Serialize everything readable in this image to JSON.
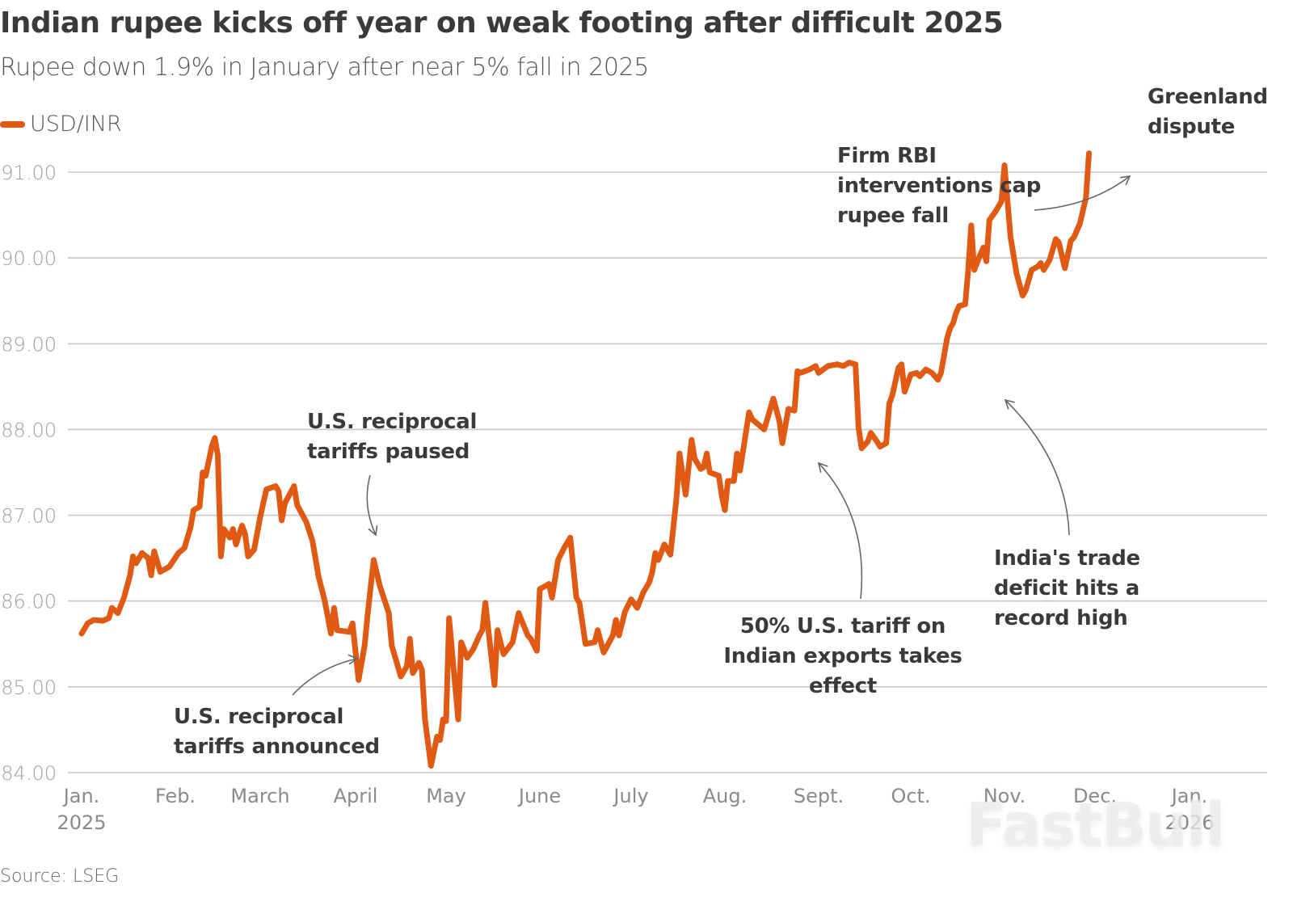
{
  "header": {
    "title": "Indian rupee kicks off year on weak footing after difficult 2025",
    "subtitle": "Rupee down 1.9% in January after near 5% fall in 2025"
  },
  "legend": {
    "label": "USD/INR",
    "color": "#e05a14"
  },
  "footer": {
    "source": "Source: LSEG",
    "watermark": "FastBull"
  },
  "chart_data": {
    "type": "line",
    "title": "Indian rupee kicks off year on weak footing after difficult 2025",
    "subtitle": "Rupee down 1.9% in January after near 5% fall in 2025",
    "xlabel": "",
    "ylabel": "",
    "ylim": [
      84.0,
      91.0
    ],
    "yticks": [
      "91.00",
      "90.00",
      "89.00",
      "88.00",
      "87.00",
      "86.00",
      "85.00",
      "84.00"
    ],
    "ytick_values": [
      91,
      90,
      89,
      88,
      87,
      86,
      85,
      84
    ],
    "xticks": [
      {
        "label": "Jan.",
        "sub": "2025",
        "date": "2025-01-01"
      },
      {
        "label": "Feb.",
        "sub": "",
        "date": "2025-02-01"
      },
      {
        "label": "March",
        "sub": "",
        "date": "2025-03-01"
      },
      {
        "label": "April",
        "sub": "",
        "date": "2025-04-01"
      },
      {
        "label": "May",
        "sub": "",
        "date": "2025-05-01"
      },
      {
        "label": "June",
        "sub": "",
        "date": "2025-06-01"
      },
      {
        "label": "July",
        "sub": "",
        "date": "2025-07-01"
      },
      {
        "label": "Aug.",
        "sub": "",
        "date": "2025-08-01"
      },
      {
        "label": "Sept.",
        "sub": "",
        "date": "2025-09-01"
      },
      {
        "label": "Oct.",
        "sub": "",
        "date": "2025-10-01"
      },
      {
        "label": "Nov.",
        "sub": "",
        "date": "2025-11-01"
      },
      {
        "label": "Dec.",
        "sub": "",
        "date": "2025-12-01"
      },
      {
        "label": "Jan.",
        "sub": "2026",
        "date": "2026-01-01"
      }
    ],
    "xlim": [
      "2025-01-01",
      "2026-01-21"
    ],
    "grid": true,
    "legend_position": "top-left",
    "series": [
      {
        "name": "USD/INR",
        "color": "#e05a14",
        "points": [
          [
            "2025-01-01",
            85.62
          ],
          [
            "2025-01-03",
            85.74
          ],
          [
            "2025-01-05",
            85.78
          ],
          [
            "2025-01-08",
            85.77
          ],
          [
            "2025-01-10",
            85.8
          ],
          [
            "2025-01-11",
            85.92
          ],
          [
            "2025-01-13",
            85.86
          ],
          [
            "2025-01-15",
            86.04
          ],
          [
            "2025-01-17",
            86.3
          ],
          [
            "2025-01-18",
            86.52
          ],
          [
            "2025-01-19",
            86.44
          ],
          [
            "2025-01-21",
            86.56
          ],
          [
            "2025-01-23",
            86.5
          ],
          [
            "2025-01-24",
            86.3
          ],
          [
            "2025-01-25",
            86.58
          ],
          [
            "2025-01-27",
            86.34
          ],
          [
            "2025-01-30",
            86.4
          ],
          [
            "2025-02-02",
            86.56
          ],
          [
            "2025-02-04",
            86.62
          ],
          [
            "2025-02-06",
            86.86
          ],
          [
            "2025-02-07",
            87.06
          ],
          [
            "2025-02-09",
            87.1
          ],
          [
            "2025-02-10",
            87.5
          ],
          [
            "2025-02-11",
            87.46
          ],
          [
            "2025-02-13",
            87.8
          ],
          [
            "2025-02-14",
            87.9
          ],
          [
            "2025-02-15",
            87.7
          ],
          [
            "2025-02-16",
            86.52
          ],
          [
            "2025-02-17",
            86.84
          ],
          [
            "2025-02-19",
            86.74
          ],
          [
            "2025-02-20",
            86.84
          ],
          [
            "2025-02-21",
            86.66
          ],
          [
            "2025-02-23",
            86.88
          ],
          [
            "2025-02-24",
            86.78
          ],
          [
            "2025-02-25",
            86.52
          ],
          [
            "2025-02-27",
            86.6
          ],
          [
            "2025-03-01",
            86.98
          ],
          [
            "2025-03-03",
            87.3
          ],
          [
            "2025-03-06",
            87.34
          ],
          [
            "2025-03-07",
            87.28
          ],
          [
            "2025-03-08",
            86.94
          ],
          [
            "2025-03-09",
            87.14
          ],
          [
            "2025-03-12",
            87.34
          ],
          [
            "2025-03-13",
            87.12
          ],
          [
            "2025-03-16",
            86.92
          ],
          [
            "2025-03-18",
            86.7
          ],
          [
            "2025-03-20",
            86.28
          ],
          [
            "2025-03-22",
            86.0
          ],
          [
            "2025-03-24",
            85.62
          ],
          [
            "2025-03-25",
            85.92
          ],
          [
            "2025-03-26",
            85.66
          ],
          [
            "2025-03-30",
            85.64
          ],
          [
            "2025-03-31",
            85.74
          ],
          [
            "2025-04-02",
            85.08
          ],
          [
            "2025-04-04",
            85.48
          ],
          [
            "2025-04-05",
            85.84
          ],
          [
            "2025-04-07",
            86.48
          ],
          [
            "2025-04-09",
            86.18
          ],
          [
            "2025-04-12",
            85.86
          ],
          [
            "2025-04-13",
            85.48
          ],
          [
            "2025-04-16",
            85.12
          ],
          [
            "2025-04-18",
            85.24
          ],
          [
            "2025-04-19",
            85.56
          ],
          [
            "2025-04-20",
            85.16
          ],
          [
            "2025-04-22",
            85.28
          ],
          [
            "2025-04-23",
            85.2
          ],
          [
            "2025-04-24",
            84.62
          ],
          [
            "2025-04-26",
            84.08
          ],
          [
            "2025-04-28",
            84.42
          ],
          [
            "2025-04-29",
            84.38
          ],
          [
            "2025-04-30",
            84.62
          ],
          [
            "2025-05-01",
            84.6
          ],
          [
            "2025-05-02",
            85.8
          ],
          [
            "2025-05-05",
            84.62
          ],
          [
            "2025-05-06",
            85.52
          ],
          [
            "2025-05-08",
            85.34
          ],
          [
            "2025-05-10",
            85.44
          ],
          [
            "2025-05-12",
            85.6
          ],
          [
            "2025-05-13",
            85.66
          ],
          [
            "2025-05-14",
            85.98
          ],
          [
            "2025-05-17",
            85.02
          ],
          [
            "2025-05-18",
            85.66
          ],
          [
            "2025-05-20",
            85.38
          ],
          [
            "2025-05-23",
            85.52
          ],
          [
            "2025-05-25",
            85.86
          ],
          [
            "2025-05-28",
            85.6
          ],
          [
            "2025-05-29",
            85.56
          ],
          [
            "2025-05-31",
            85.42
          ],
          [
            "2025-06-01",
            86.14
          ],
          [
            "2025-06-04",
            86.2
          ],
          [
            "2025-06-05",
            86.04
          ],
          [
            "2025-06-07",
            86.48
          ],
          [
            "2025-06-09",
            86.62
          ],
          [
            "2025-06-11",
            86.74
          ],
          [
            "2025-06-13",
            86.04
          ],
          [
            "2025-06-14",
            85.98
          ],
          [
            "2025-06-16",
            85.5
          ],
          [
            "2025-06-19",
            85.52
          ],
          [
            "2025-06-20",
            85.66
          ],
          [
            "2025-06-22",
            85.4
          ],
          [
            "2025-06-25",
            85.6
          ],
          [
            "2025-06-26",
            85.78
          ],
          [
            "2025-06-27",
            85.6
          ],
          [
            "2025-06-29",
            85.88
          ],
          [
            "2025-07-01",
            86.02
          ],
          [
            "2025-07-03",
            85.92
          ],
          [
            "2025-07-05",
            86.1
          ],
          [
            "2025-07-07",
            86.22
          ],
          [
            "2025-07-08",
            86.34
          ],
          [
            "2025-07-09",
            86.56
          ],
          [
            "2025-07-10",
            86.48
          ],
          [
            "2025-07-12",
            86.66
          ],
          [
            "2025-07-14",
            86.54
          ],
          [
            "2025-07-16",
            87.2
          ],
          [
            "2025-07-17",
            87.72
          ],
          [
            "2025-07-19",
            87.24
          ],
          [
            "2025-07-21",
            87.88
          ],
          [
            "2025-07-22",
            87.66
          ],
          [
            "2025-07-24",
            87.54
          ],
          [
            "2025-07-25",
            87.56
          ],
          [
            "2025-07-26",
            87.72
          ],
          [
            "2025-07-27",
            87.5
          ],
          [
            "2025-07-30",
            87.46
          ],
          [
            "2025-07-31",
            87.22
          ],
          [
            "2025-08-01",
            87.06
          ],
          [
            "2025-08-02",
            87.4
          ],
          [
            "2025-08-04",
            87.4
          ],
          [
            "2025-08-05",
            87.72
          ],
          [
            "2025-08-06",
            87.52
          ],
          [
            "2025-08-09",
            88.2
          ],
          [
            "2025-08-10",
            88.12
          ],
          [
            "2025-08-12",
            88.06
          ],
          [
            "2025-08-14",
            88.0
          ],
          [
            "2025-08-15",
            88.12
          ],
          [
            "2025-08-17",
            88.36
          ],
          [
            "2025-08-19",
            88.1
          ],
          [
            "2025-08-20",
            87.84
          ],
          [
            "2025-08-22",
            88.24
          ],
          [
            "2025-08-24",
            88.22
          ],
          [
            "2025-08-25",
            88.68
          ],
          [
            "2025-08-26",
            88.66
          ],
          [
            "2025-08-29",
            88.7
          ],
          [
            "2025-08-31",
            88.74
          ],
          [
            "2025-09-01",
            88.66
          ],
          [
            "2025-09-04",
            88.74
          ],
          [
            "2025-09-07",
            88.76
          ],
          [
            "2025-09-09",
            88.74
          ],
          [
            "2025-09-11",
            88.78
          ],
          [
            "2025-09-13",
            88.76
          ],
          [
            "2025-09-14",
            88.02
          ],
          [
            "2025-09-15",
            87.78
          ],
          [
            "2025-09-17",
            87.86
          ],
          [
            "2025-09-18",
            87.96
          ],
          [
            "2025-09-20",
            87.86
          ],
          [
            "2025-09-21",
            87.8
          ],
          [
            "2025-09-23",
            87.84
          ],
          [
            "2025-09-24",
            88.3
          ],
          [
            "2025-09-25",
            88.4
          ],
          [
            "2025-09-27",
            88.72
          ],
          [
            "2025-09-28",
            88.76
          ],
          [
            "2025-09-29",
            88.44
          ],
          [
            "2025-10-01",
            88.64
          ],
          [
            "2025-10-03",
            88.66
          ],
          [
            "2025-10-04",
            88.62
          ],
          [
            "2025-10-06",
            88.7
          ],
          [
            "2025-10-08",
            88.66
          ],
          [
            "2025-10-10",
            88.58
          ],
          [
            "2025-10-11",
            88.66
          ],
          [
            "2025-10-13",
            89.06
          ],
          [
            "2025-10-14",
            89.18
          ],
          [
            "2025-10-15",
            89.24
          ],
          [
            "2025-10-16",
            89.36
          ],
          [
            "2025-10-17",
            89.44
          ],
          [
            "2025-10-19",
            89.46
          ],
          [
            "2025-10-20",
            89.86
          ],
          [
            "2025-10-21",
            90.38
          ],
          [
            "2025-10-22",
            89.86
          ],
          [
            "2025-10-24",
            90.04
          ],
          [
            "2025-10-25",
            90.12
          ],
          [
            "2025-10-26",
            89.96
          ],
          [
            "2025-10-27",
            90.44
          ],
          [
            "2025-10-29",
            90.54
          ],
          [
            "2025-10-31",
            90.66
          ],
          [
            "2025-11-01",
            91.08
          ],
          [
            "2025-11-03",
            90.24
          ],
          [
            "2025-11-05",
            89.82
          ],
          [
            "2025-11-07",
            89.56
          ],
          [
            "2025-11-08",
            89.62
          ],
          [
            "2025-11-10",
            89.86
          ],
          [
            "2025-11-12",
            89.9
          ],
          [
            "2025-11-13",
            89.94
          ],
          [
            "2025-11-14",
            89.86
          ],
          [
            "2025-11-16",
            89.98
          ],
          [
            "2025-11-18",
            90.22
          ],
          [
            "2025-11-19",
            90.18
          ],
          [
            "2025-11-21",
            89.88
          ],
          [
            "2025-11-23",
            90.2
          ],
          [
            "2025-11-24",
            90.24
          ],
          [
            "2025-11-26",
            90.4
          ],
          [
            "2025-11-28",
            90.7
          ],
          [
            "2025-11-29",
            91.22
          ]
        ]
      }
    ],
    "annotations": [
      {
        "text": [
          "U.S. reciprocal",
          "tariffs announced"
        ],
        "points_to": "2025-04-02",
        "value": 85.3
      },
      {
        "text": [
          "U.S. reciprocal",
          "tariffs paused"
        ],
        "points_to": "2025-04-09",
        "value": 86.7
      },
      {
        "text": [
          "50% U.S. tariff on",
          "Indian exports takes",
          "effect"
        ],
        "points_to": "2025-08-27",
        "value": 87.6
      },
      {
        "text": [
          "India's trade",
          "deficit hits a",
          "record high"
        ],
        "points_to": "2025-11-15",
        "value": 88.4
      },
      {
        "text": [
          "Firm RBI",
          "interventions cap",
          "rupee fall"
        ],
        "points_to": "2025-12-16",
        "value": 90.95
      },
      {
        "text": [
          "Greenland",
          "dispute"
        ],
        "points_to": "2026-01-21",
        "value": 91.25
      }
    ]
  }
}
